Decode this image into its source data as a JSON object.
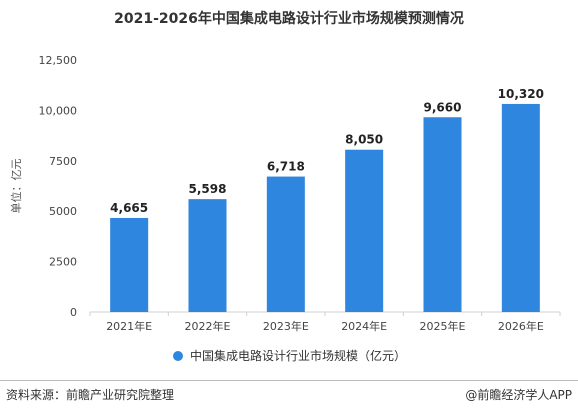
{
  "chart_data": {
    "type": "bar",
    "title": "2021-2026年中国集成电路设计行业市场规模预测情况",
    "ylabel": "单位：亿元",
    "xlabel": "",
    "categories": [
      "2021年E",
      "2022年E",
      "2023年E",
      "2024年E",
      "2025年E",
      "2026年E"
    ],
    "series": [
      {
        "name": "中国集成电路设计行业市场规模（亿元）",
        "values": [
          4665,
          5598,
          6718,
          8050,
          9660,
          10320
        ],
        "labels": [
          "4,665",
          "5,598",
          "6,718",
          "8,050",
          "9,660",
          "10,320"
        ],
        "color": "#2e86de"
      }
    ],
    "ylim": [
      0,
      12500
    ],
    "yticks": [
      0,
      2500,
      5000,
      7500,
      10000,
      12500
    ],
    "ytick_labels": [
      "0",
      "2500",
      "5000",
      "7500",
      "10,000",
      "12,500"
    ],
    "grid": false,
    "legend_position": "bottom-center"
  },
  "footer": {
    "source": "资料来源：前瞻产业研究院整理",
    "credit": "@前瞻经济学人APP"
  }
}
